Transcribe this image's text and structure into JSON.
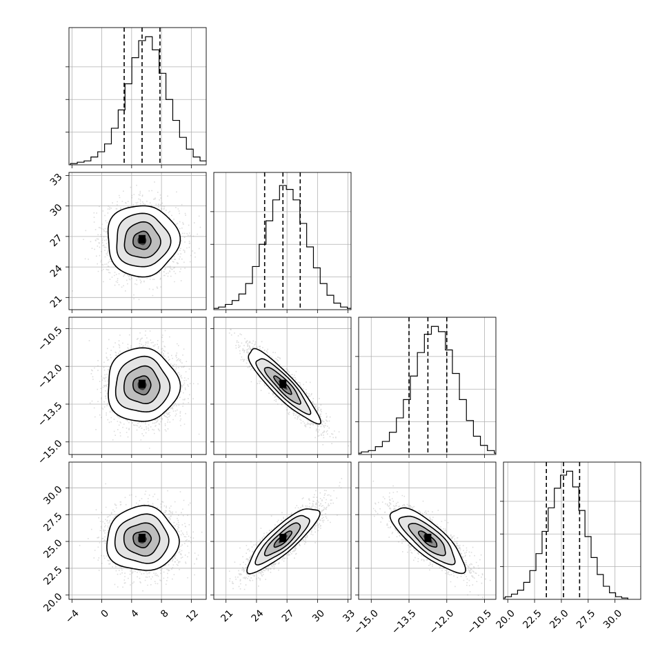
{
  "chart_data": {
    "type": "corner",
    "parameters": [
      {
        "ticks": [
          -4,
          0,
          4,
          8,
          12
        ],
        "tick_labels": [
          "−4",
          "0",
          "4",
          "8",
          "12"
        ],
        "range": [
          -4.4,
          14.0
        ]
      },
      {
        "ticks": [
          21,
          24,
          27,
          30,
          33
        ],
        "tick_labels": [
          "21",
          "24",
          "27",
          "30",
          "33"
        ],
        "range": [
          19.8,
          33.3
        ]
      },
      {
        "ticks": [
          -15.0,
          -13.5,
          -12.0,
          -10.5
        ],
        "tick_labels": [
          "−15.0",
          "−13.5",
          "−12.0",
          "−10.5"
        ],
        "range": [
          -15.5,
          -10.05
        ]
      },
      {
        "ticks": [
          20.0,
          22.5,
          25.0,
          27.5,
          30.0
        ],
        "tick_labels": [
          "20.0",
          "22.5",
          "25.0",
          "27.5",
          "30.0"
        ],
        "range": [
          19.6,
          32.4
        ]
      }
    ],
    "quantiles": [
      [
        3.0,
        5.4,
        7.8
      ],
      [
        24.8,
        26.6,
        28.3
      ],
      [
        -13.5,
        -12.75,
        -12.0
      ],
      [
        23.6,
        25.2,
        26.7
      ]
    ],
    "histograms": [
      {
        "values": [
          0.01,
          0.02,
          0.03,
          0.06,
          0.1,
          0.16,
          0.28,
          0.42,
          0.62,
          0.82,
          0.95,
          0.98,
          0.88,
          0.7,
          0.5,
          0.34,
          0.21,
          0.12,
          0.06,
          0.03,
          0.01
        ]
      },
      {
        "values": [
          0.01,
          0.02,
          0.04,
          0.07,
          0.12,
          0.2,
          0.33,
          0.5,
          0.68,
          0.84,
          0.95,
          0.92,
          0.84,
          0.66,
          0.48,
          0.32,
          0.2,
          0.11,
          0.05,
          0.02,
          0.01
        ]
      },
      {
        "values": [
          0.01,
          0.02,
          0.03,
          0.06,
          0.1,
          0.17,
          0.28,
          0.42,
          0.6,
          0.78,
          0.92,
          0.98,
          0.94,
          0.8,
          0.62,
          0.42,
          0.26,
          0.14,
          0.07,
          0.03,
          0.01
        ]
      },
      {
        "values": [
          0.01,
          0.02,
          0.04,
          0.07,
          0.13,
          0.22,
          0.35,
          0.52,
          0.7,
          0.85,
          0.95,
          0.98,
          0.86,
          0.68,
          0.48,
          0.32,
          0.19,
          0.1,
          0.05,
          0.02,
          0.01
        ]
      }
    ],
    "stats": {
      "mean": [
        5.4,
        26.6,
        -12.75,
        25.2
      ],
      "std": [
        2.4,
        1.75,
        0.73,
        1.5
      ],
      "correlation": [
        [
          1.0,
          0.0,
          0.0,
          0.0
        ],
        [
          0.0,
          1.0,
          -0.9,
          0.85
        ],
        [
          0.0,
          -0.9,
          1.0,
          -0.8
        ],
        [
          0.0,
          0.85,
          -0.8,
          1.0
        ]
      ]
    },
    "grid": true,
    "colors": {
      "line": "#000000",
      "grid": "#b0b0b0",
      "samples": "#9a9a9a",
      "density": "#000000"
    }
  }
}
